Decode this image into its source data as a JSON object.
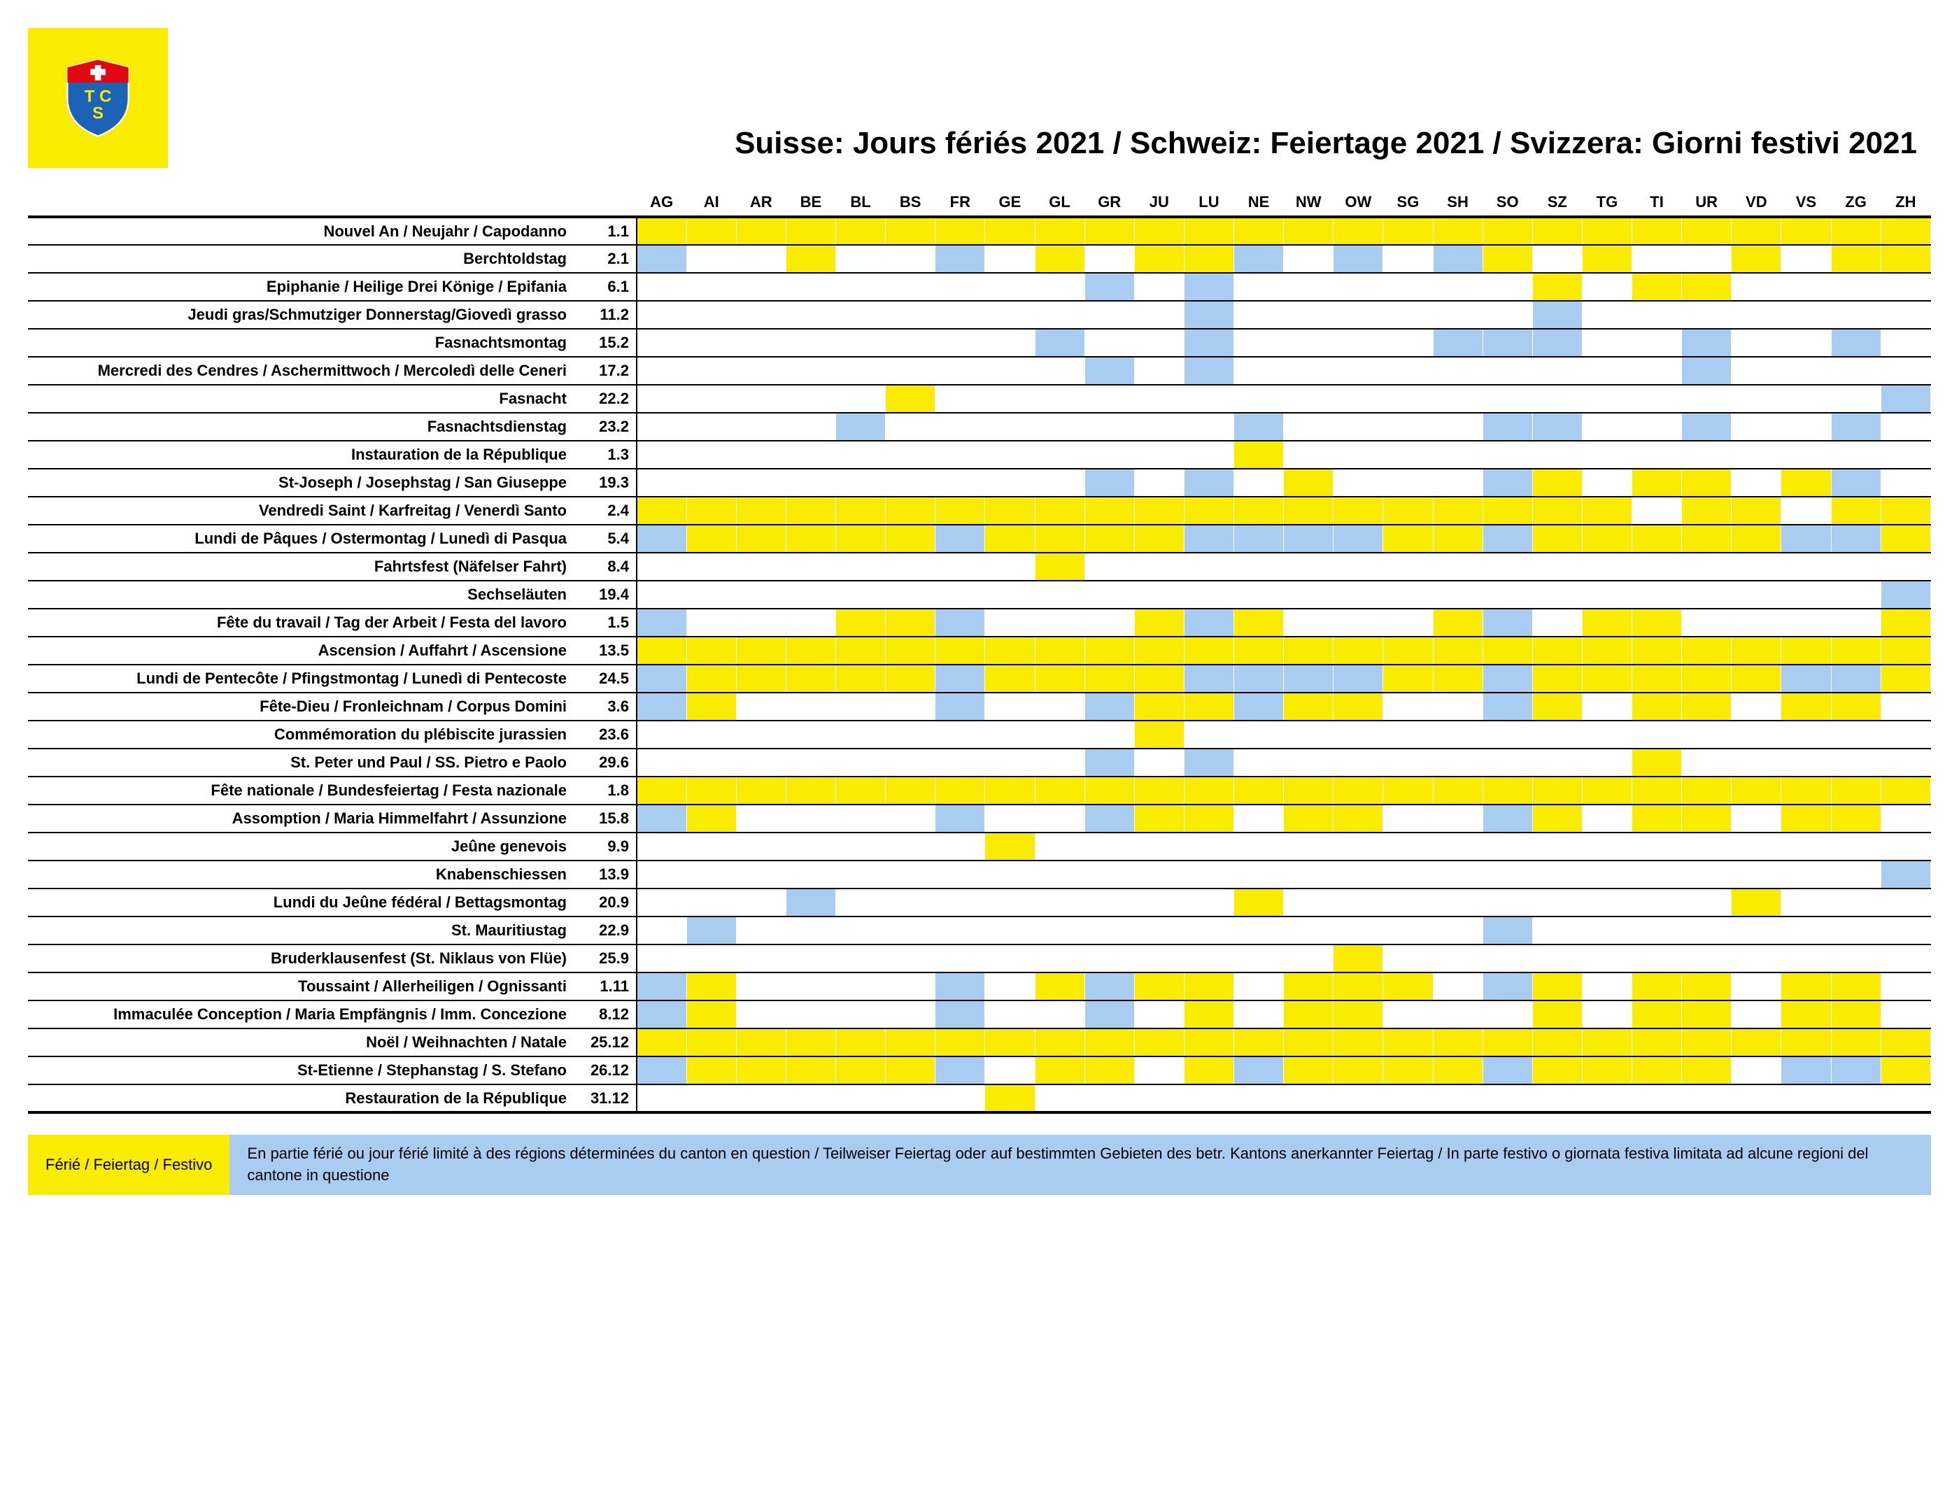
{
  "colors": {
    "yellow": "#f9ec00",
    "blue": "#a9cdf1",
    "white": "#ffffff",
    "black": "#000000",
    "shield_blue": "#1c63b7",
    "shield_red": "#e30613"
  },
  "title": "Suisse: Jours fériés 2021 / Schweiz: Feiertage 2021 / Svizzera: Giorni festivi 2021",
  "cantons": [
    "AG",
    "AI",
    "AR",
    "BE",
    "BL",
    "BS",
    "FR",
    "GE",
    "GL",
    "GR",
    "JU",
    "LU",
    "NE",
    "NW",
    "OW",
    "SG",
    "SH",
    "SO",
    "SZ",
    "TG",
    "TI",
    "UR",
    "VD",
    "VS",
    "ZG",
    "ZH"
  ],
  "rows": [
    {
      "name": "Nouvel An / Neujahr / Capodanno",
      "date": "1.1",
      "cells": [
        "F",
        "F",
        "F",
        "F",
        "F",
        "F",
        "F",
        "F",
        "F",
        "F",
        "F",
        "F",
        "F",
        "F",
        "F",
        "F",
        "F",
        "F",
        "F",
        "F",
        "F",
        "F",
        "F",
        "F",
        "F",
        "F"
      ]
    },
    {
      "name": "Berchtoldstag",
      "date": "2.1",
      "cells": [
        "P",
        "",
        "",
        "F",
        "",
        "",
        "P",
        "",
        "F",
        "",
        "F",
        "F",
        "P",
        "",
        "P",
        "",
        "P",
        "F",
        "",
        "F",
        "",
        "",
        "F",
        "",
        "F",
        "F"
      ]
    },
    {
      "name": "Epiphanie / Heilige Drei Könige / Epifania",
      "date": "6.1",
      "cells": [
        "",
        "",
        "",
        "",
        "",
        "",
        "",
        "",
        "",
        "P",
        "",
        "P",
        "",
        "",
        "",
        "",
        "",
        "",
        "F",
        "",
        "F",
        "F",
        "",
        "",
        "",
        ""
      ]
    },
    {
      "name": "Jeudi gras/Schmutziger Donnerstag/Giovedì grasso",
      "date": "11.2",
      "cells": [
        "",
        "",
        "",
        "",
        "",
        "",
        "",
        "",
        "",
        "",
        "",
        "P",
        "",
        "",
        "",
        "",
        "",
        "",
        "P",
        "",
        "",
        "",
        "",
        "",
        "",
        ""
      ]
    },
    {
      "name": "Fasnachtsmontag",
      "date": "15.2",
      "cells": [
        "",
        "",
        "",
        "",
        "",
        "",
        "",
        "",
        "P",
        "",
        "",
        "P",
        "",
        "",
        "",
        "",
        "P",
        "P",
        "P",
        "",
        "",
        "P",
        "",
        "",
        "P",
        ""
      ]
    },
    {
      "name": "Mercredi des Cendres / Aschermittwoch / Mercoledì delle Ceneri",
      "date": "17.2",
      "cells": [
        "",
        "",
        "",
        "",
        "",
        "",
        "",
        "",
        "",
        "P",
        "",
        "P",
        "",
        "",
        "",
        "",
        "",
        "",
        "",
        "",
        "",
        "P",
        "",
        "",
        "",
        ""
      ]
    },
    {
      "name": "Fasnacht",
      "date": "22.2",
      "cells": [
        "",
        "",
        "",
        "",
        "",
        "F",
        "",
        "",
        "",
        "",
        "",
        "",
        "",
        "",
        "",
        "",
        "",
        "",
        "",
        "",
        "",
        "",
        "",
        "",
        "",
        "P"
      ]
    },
    {
      "name": "Fasnachtsdienstag",
      "date": "23.2",
      "cells": [
        "",
        "",
        "",
        "",
        "P",
        "",
        "",
        "",
        "",
        "",
        "",
        "",
        "P",
        "",
        "",
        "",
        "",
        "P",
        "P",
        "",
        "",
        "P",
        "",
        "",
        "P",
        ""
      ]
    },
    {
      "name": "Instauration de la République",
      "date": "1.3",
      "cells": [
        "",
        "",
        "",
        "",
        "",
        "",
        "",
        "",
        "",
        "",
        "",
        "",
        "F",
        "",
        "",
        "",
        "",
        "",
        "",
        "",
        "",
        "",
        "",
        "",
        "",
        ""
      ]
    },
    {
      "name": "St-Joseph / Josephstag / San Giuseppe",
      "date": "19.3",
      "cells": [
        "",
        "",
        "",
        "",
        "",
        "",
        "",
        "",
        "",
        "P",
        "",
        "P",
        "",
        "F",
        "",
        "",
        "",
        "P",
        "F",
        "",
        "F",
        "F",
        "",
        "F",
        "P",
        ""
      ]
    },
    {
      "name": "Vendredi Saint / Karfreitag / Venerdì Santo",
      "date": "2.4",
      "cells": [
        "F",
        "F",
        "F",
        "F",
        "F",
        "F",
        "F",
        "F",
        "F",
        "F",
        "F",
        "F",
        "F",
        "F",
        "F",
        "F",
        "F",
        "F",
        "F",
        "F",
        "",
        "F",
        "F",
        "",
        "F",
        "F"
      ]
    },
    {
      "name": "Lundi de Pâques / Ostermontag / Lunedì di Pasqua",
      "date": "5.4",
      "cells": [
        "P",
        "F",
        "F",
        "F",
        "F",
        "F",
        "P",
        "F",
        "F",
        "F",
        "F",
        "P",
        "P",
        "P",
        "P",
        "F",
        "F",
        "P",
        "F",
        "F",
        "F",
        "F",
        "F",
        "P",
        "P",
        "F"
      ]
    },
    {
      "name": "Fahrtsfest (Näfelser Fahrt)",
      "date": "8.4",
      "cells": [
        "",
        "",
        "",
        "",
        "",
        "",
        "",
        "",
        "F",
        "",
        "",
        "",
        "",
        "",
        "",
        "",
        "",
        "",
        "",
        "",
        "",
        "",
        "",
        "",
        "",
        ""
      ]
    },
    {
      "name": "Sechseläuten",
      "date": "19.4",
      "cells": [
        "",
        "",
        "",
        "",
        "",
        "",
        "",
        "",
        "",
        "",
        "",
        "",
        "",
        "",
        "",
        "",
        "",
        "",
        "",
        "",
        "",
        "",
        "",
        "",
        "",
        "P"
      ]
    },
    {
      "name": "Fête du travail / Tag der Arbeit / Festa del lavoro",
      "date": "1.5",
      "cells": [
        "P",
        "",
        "",
        "",
        "F",
        "F",
        "P",
        "",
        "",
        "",
        "F",
        "P",
        "F",
        "",
        "",
        "",
        "F",
        "P",
        "",
        "F",
        "F",
        "",
        "",
        "",
        "",
        "F"
      ]
    },
    {
      "name": "Ascension / Auffahrt / Ascensione",
      "date": "13.5",
      "cells": [
        "F",
        "F",
        "F",
        "F",
        "F",
        "F",
        "F",
        "F",
        "F",
        "F",
        "F",
        "F",
        "F",
        "F",
        "F",
        "F",
        "F",
        "F",
        "F",
        "F",
        "F",
        "F",
        "F",
        "F",
        "F",
        "F"
      ]
    },
    {
      "name": "Lundi de Pentecôte / Pfingstmontag / Lunedì di Pentecoste",
      "date": "24.5",
      "cells": [
        "P",
        "F",
        "F",
        "F",
        "F",
        "F",
        "P",
        "F",
        "F",
        "F",
        "F",
        "P",
        "P",
        "P",
        "P",
        "F",
        "F",
        "P",
        "F",
        "F",
        "F",
        "F",
        "F",
        "P",
        "P",
        "F"
      ]
    },
    {
      "name": "Fête-Dieu / Fronleichnam / Corpus Domini",
      "date": "3.6",
      "cells": [
        "P",
        "F",
        "",
        "",
        "",
        "",
        "P",
        "",
        "",
        "P",
        "F",
        "F",
        "P",
        "F",
        "F",
        "",
        "",
        "P",
        "F",
        "",
        "F",
        "F",
        "",
        "F",
        "F",
        ""
      ]
    },
    {
      "name": "Commémoration du plébiscite jurassien",
      "date": "23.6",
      "cells": [
        "",
        "",
        "",
        "",
        "",
        "",
        "",
        "",
        "",
        "",
        "F",
        "",
        "",
        "",
        "",
        "",
        "",
        "",
        "",
        "",
        "",
        "",
        "",
        "",
        "",
        ""
      ]
    },
    {
      "name": "St. Peter und Paul / SS. Pietro e Paolo",
      "date": "29.6",
      "cells": [
        "",
        "",
        "",
        "",
        "",
        "",
        "",
        "",
        "",
        "P",
        "",
        "P",
        "",
        "",
        "",
        "",
        "",
        "",
        "",
        "",
        "F",
        "",
        "",
        "",
        "",
        ""
      ]
    },
    {
      "name": "Fête nationale / Bundesfeiertag / Festa nazionale",
      "date": "1.8",
      "cells": [
        "F",
        "F",
        "F",
        "F",
        "F",
        "F",
        "F",
        "F",
        "F",
        "F",
        "F",
        "F",
        "F",
        "F",
        "F",
        "F",
        "F",
        "F",
        "F",
        "F",
        "F",
        "F",
        "F",
        "F",
        "F",
        "F"
      ]
    },
    {
      "name": "Assomption / Maria Himmelfahrt / Assunzione",
      "date": "15.8",
      "cells": [
        "P",
        "F",
        "",
        "",
        "",
        "",
        "P",
        "",
        "",
        "P",
        "F",
        "F",
        "",
        "F",
        "F",
        "",
        "",
        "P",
        "F",
        "",
        "F",
        "F",
        "",
        "F",
        "F",
        ""
      ]
    },
    {
      "name": "Jeûne genevois",
      "date": "9.9",
      "cells": [
        "",
        "",
        "",
        "",
        "",
        "",
        "",
        "F",
        "",
        "",
        "",
        "",
        "",
        "",
        "",
        "",
        "",
        "",
        "",
        "",
        "",
        "",
        "",
        "",
        "",
        ""
      ]
    },
    {
      "name": "Knabenschiessen",
      "date": "13.9",
      "cells": [
        "",
        "",
        "",
        "",
        "",
        "",
        "",
        "",
        "",
        "",
        "",
        "",
        "",
        "",
        "",
        "",
        "",
        "",
        "",
        "",
        "",
        "",
        "",
        "",
        "",
        "P"
      ]
    },
    {
      "name": "Lundi du Jeûne fédéral / Bettagsmontag",
      "date": "20.9",
      "cells": [
        "",
        "",
        "",
        "P",
        "",
        "",
        "",
        "",
        "",
        "",
        "",
        "",
        "F",
        "",
        "",
        "",
        "",
        "",
        "",
        "",
        "",
        "",
        "F",
        "",
        "",
        ""
      ]
    },
    {
      "name": "St. Mauritiustag",
      "date": "22.9",
      "cells": [
        "",
        "P",
        "",
        "",
        "",
        "",
        "",
        "",
        "",
        "",
        "",
        "",
        "",
        "",
        "",
        "",
        "",
        "P",
        "",
        "",
        "",
        "",
        "",
        "",
        "",
        ""
      ]
    },
    {
      "name": "Bruderklausenfest (St. Niklaus von Flüe)",
      "date": "25.9",
      "cells": [
        "",
        "",
        "",
        "",
        "",
        "",
        "",
        "",
        "",
        "",
        "",
        "",
        "",
        "",
        "F",
        "",
        "",
        "",
        "",
        "",
        "",
        "",
        "",
        "",
        "",
        ""
      ]
    },
    {
      "name": "Toussaint / Allerheiligen / Ognissanti",
      "date": "1.11",
      "cells": [
        "P",
        "F",
        "",
        "",
        "",
        "",
        "P",
        "",
        "F",
        "P",
        "F",
        "F",
        "",
        "F",
        "F",
        "F",
        "",
        "P",
        "F",
        "",
        "F",
        "F",
        "",
        "F",
        "F",
        ""
      ]
    },
    {
      "name": "Immaculée Conception / Maria Empfängnis / Imm. Concezione",
      "date": "8.12",
      "cells": [
        "P",
        "F",
        "",
        "",
        "",
        "",
        "P",
        "",
        "",
        "P",
        "",
        "F",
        "",
        "F",
        "F",
        "",
        "",
        "",
        "F",
        "",
        "F",
        "F",
        "",
        "F",
        "F",
        ""
      ]
    },
    {
      "name": "Noël / Weihnachten / Natale",
      "date": "25.12",
      "cells": [
        "F",
        "F",
        "F",
        "F",
        "F",
        "F",
        "F",
        "F",
        "F",
        "F",
        "F",
        "F",
        "F",
        "F",
        "F",
        "F",
        "F",
        "F",
        "F",
        "F",
        "F",
        "F",
        "F",
        "F",
        "F",
        "F"
      ]
    },
    {
      "name": "St-Etienne / Stephanstag / S. Stefano",
      "date": "26.12",
      "cells": [
        "P",
        "F",
        "F",
        "F",
        "F",
        "F",
        "P",
        "",
        "F",
        "F",
        "",
        "F",
        "P",
        "F",
        "F",
        "F",
        "F",
        "P",
        "F",
        "F",
        "F",
        "F",
        "",
        "P",
        "P",
        "F"
      ]
    },
    {
      "name": "Restauration de la République",
      "date": "31.12",
      "cells": [
        "",
        "",
        "",
        "",
        "",
        "",
        "",
        "F",
        "",
        "",
        "",
        "",
        "",
        "",
        "",
        "",
        "",
        "",
        "",
        "",
        "",
        "",
        "",
        "",
        "",
        ""
      ]
    }
  ],
  "legend": {
    "full": "Férié / Feiertag / Festivo",
    "part": "En partie férié ou jour férié limité à des régions déterminées du canton en question / Teilweiser Feiertag oder auf bestimmten Gebieten des betr. Kantons anerkannter Feiertag / In parte festivo o giornata festiva limitata ad alcune regioni del cantone in questione"
  }
}
